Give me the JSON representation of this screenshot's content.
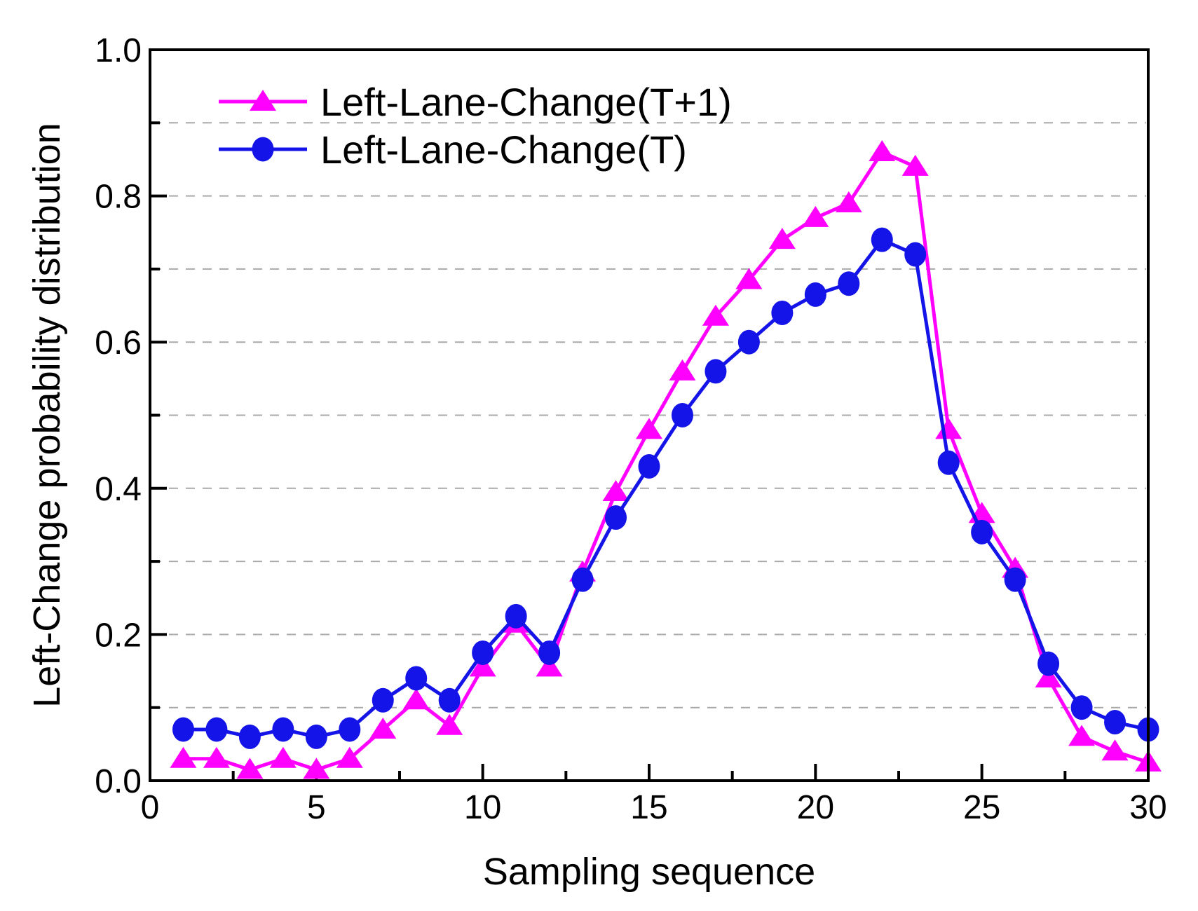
{
  "figure": {
    "background": "#ffffff",
    "frame_color": "#000000",
    "grid_color": "#a9a9a9",
    "text_color": "#000000"
  },
  "chart_data": {
    "type": "line",
    "title": "",
    "xlabel": "Sampling sequence",
    "ylabel": "Left-Change probability distribution",
    "xlim": [
      0,
      30
    ],
    "ylim": [
      0.0,
      1.0
    ],
    "x_major_ticks": [
      0,
      5,
      10,
      15,
      20,
      25,
      30
    ],
    "x_minor_ticks": [
      2.5,
      7.5,
      12.5,
      17.5,
      22.5,
      27.5
    ],
    "y_major_ticks": [
      "0.0",
      "0.2",
      "0.4",
      "0.6",
      "0.8",
      "1.0"
    ],
    "y_minor_ticks": [
      0.1,
      0.3,
      0.5,
      0.7,
      0.9
    ],
    "grid": "horizontal-dashed-every-0.1",
    "legend_position": "top-left-inside",
    "x": [
      1,
      2,
      3,
      4,
      5,
      6,
      7,
      8,
      9,
      10,
      11,
      12,
      13,
      14,
      15,
      16,
      17,
      18,
      19,
      20,
      21,
      22,
      23,
      24,
      25,
      26,
      27,
      28,
      29,
      30
    ],
    "series": [
      {
        "name": "Left-Lane-Change(T+1)",
        "color": "#ff00ff",
        "marker": "triangle",
        "values": [
          0.03,
          0.03,
          0.015,
          0.03,
          0.015,
          0.03,
          0.07,
          0.11,
          0.075,
          0.155,
          0.215,
          0.155,
          0.285,
          0.395,
          0.48,
          0.56,
          0.635,
          0.685,
          0.74,
          0.77,
          0.79,
          0.86,
          0.84,
          0.48,
          0.365,
          0.29,
          0.14,
          0.06,
          0.04,
          0.025
        ]
      },
      {
        "name": "Left-Lane-Change(T)",
        "color": "#1414e8",
        "marker": "circle",
        "values": [
          0.07,
          0.07,
          0.06,
          0.07,
          0.06,
          0.07,
          0.11,
          0.14,
          0.11,
          0.175,
          0.225,
          0.175,
          0.275,
          0.36,
          0.43,
          0.5,
          0.56,
          0.6,
          0.64,
          0.665,
          0.68,
          0.74,
          0.72,
          0.435,
          0.34,
          0.275,
          0.16,
          0.1,
          0.08,
          0.07
        ]
      }
    ]
  }
}
